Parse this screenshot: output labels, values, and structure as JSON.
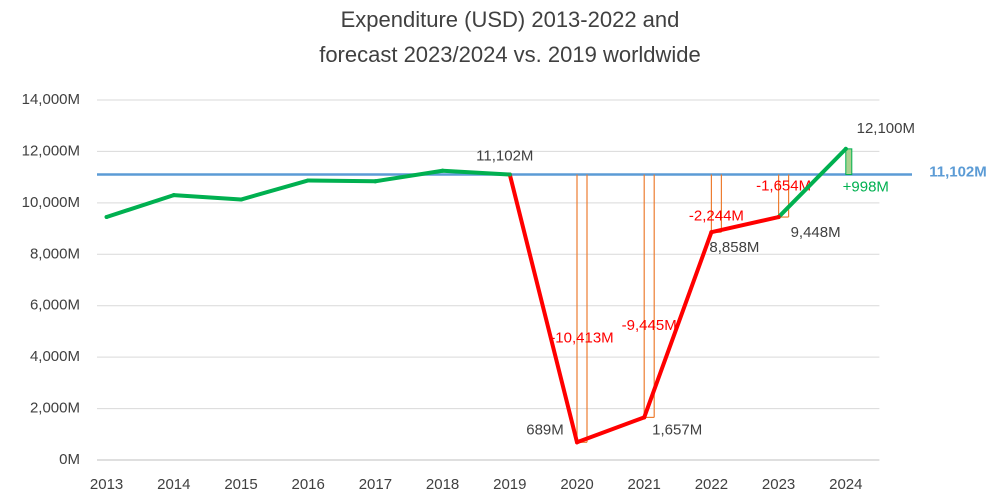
{
  "chart_data": {
    "type": "line",
    "title": [
      "Expenditure (USD) 2013-2022 and",
      "forecast 2023/2024 vs. 2019 worldwide"
    ],
    "categories": [
      "2013",
      "2014",
      "2015",
      "2016",
      "2017",
      "2018",
      "2019",
      "2020",
      "2021",
      "2022",
      "2023",
      "2024"
    ],
    "values": [
      9450,
      10300,
      10130,
      10870,
      10840,
      11250,
      11102,
      689,
      1657,
      8858,
      9448,
      12100
    ],
    "value_labels": [
      null,
      null,
      null,
      null,
      null,
      null,
      "11,102M",
      "689M",
      "1,657M",
      "8,858M",
      "9,448M",
      "12,100M"
    ],
    "segment_colors": [
      "#00b050",
      "#00b050",
      "#00b050",
      "#00b050",
      "#00b050",
      "#00b050",
      "#ff0000",
      "#ff0000",
      "#ff0000",
      "#ff0000",
      "#00b050"
    ],
    "ylim": [
      0,
      14000
    ],
    "yticks": [
      {
        "value": 0,
        "label": "0M"
      },
      {
        "value": 2000,
        "label": "2,000M"
      },
      {
        "value": 4000,
        "label": "4,000M"
      },
      {
        "value": 6000,
        "label": "6,000M"
      },
      {
        "value": 8000,
        "label": "8,000M"
      },
      {
        "value": 10000,
        "label": "10,000M"
      },
      {
        "value": 12000,
        "label": "12,000M"
      },
      {
        "value": 14000,
        "label": "14,000M"
      }
    ],
    "grid": true,
    "reference": {
      "value": 11102,
      "label": "11,102M",
      "color": "#5b9bd5"
    },
    "differences": {
      "categories": [
        "2020",
        "2021",
        "2022",
        "2023",
        "2024"
      ],
      "values": [
        -10413,
        -9445,
        -2244,
        -1654,
        998
      ],
      "value_labels": [
        "-10,413M",
        "-9,445M",
        "-2,244M",
        "-1,654M",
        "+998M"
      ],
      "negative_color": "#ff0000",
      "positive_color": "#00b050",
      "line_color": "#ed7d31"
    }
  }
}
